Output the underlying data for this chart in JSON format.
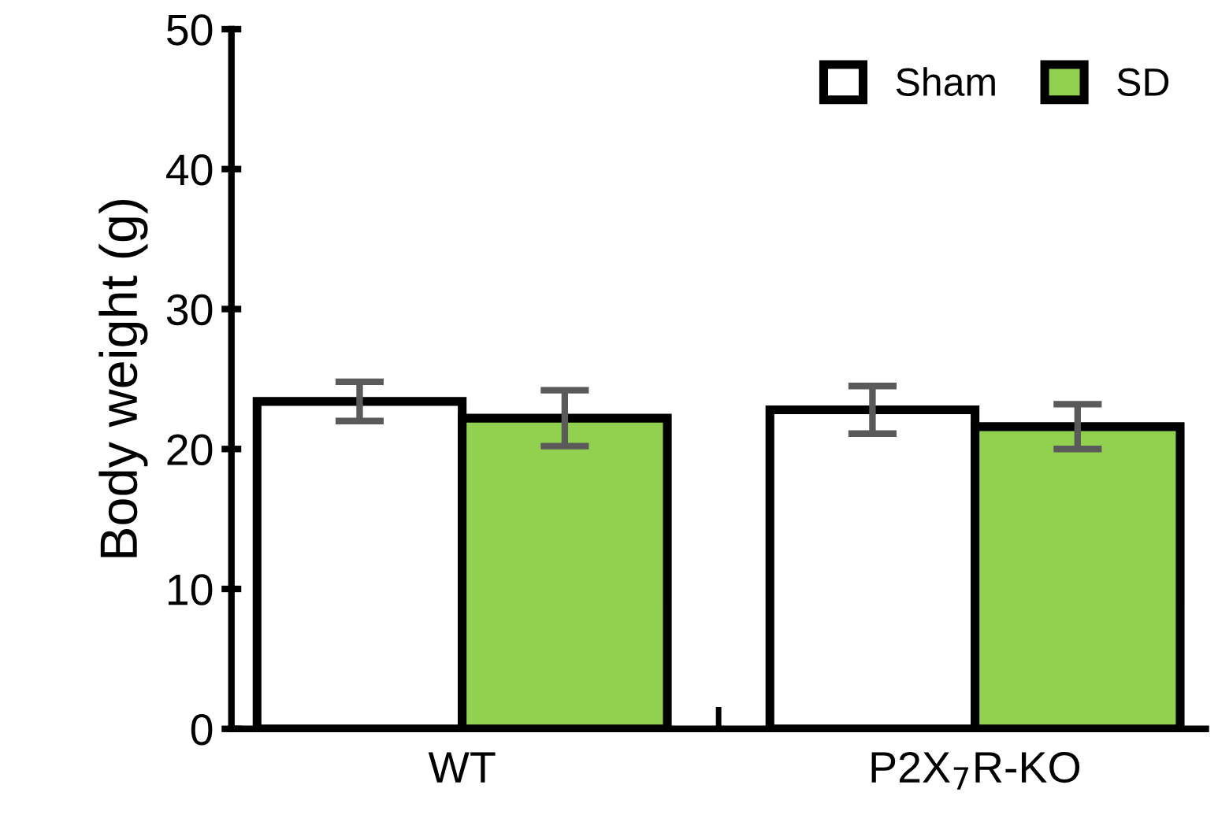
{
  "chart_data": {
    "type": "bar",
    "ylabel": "Body weight (g)",
    "categories": [
      "WT",
      "P2X$_{7}$R-KO"
    ],
    "series": [
      {
        "name": "Sham",
        "color": "#ffffff",
        "values": [
          23.4,
          22.8
        ],
        "errors": [
          1.4,
          1.7
        ]
      },
      {
        "name": "SD",
        "color": "#92d050",
        "values": [
          22.2,
          21.6
        ],
        "errors": [
          2.0,
          1.6
        ]
      }
    ],
    "ylim": [
      0,
      50
    ],
    "yticks": [
      0,
      10,
      20,
      30,
      40,
      50
    ],
    "grid": false,
    "legend": "top right"
  }
}
